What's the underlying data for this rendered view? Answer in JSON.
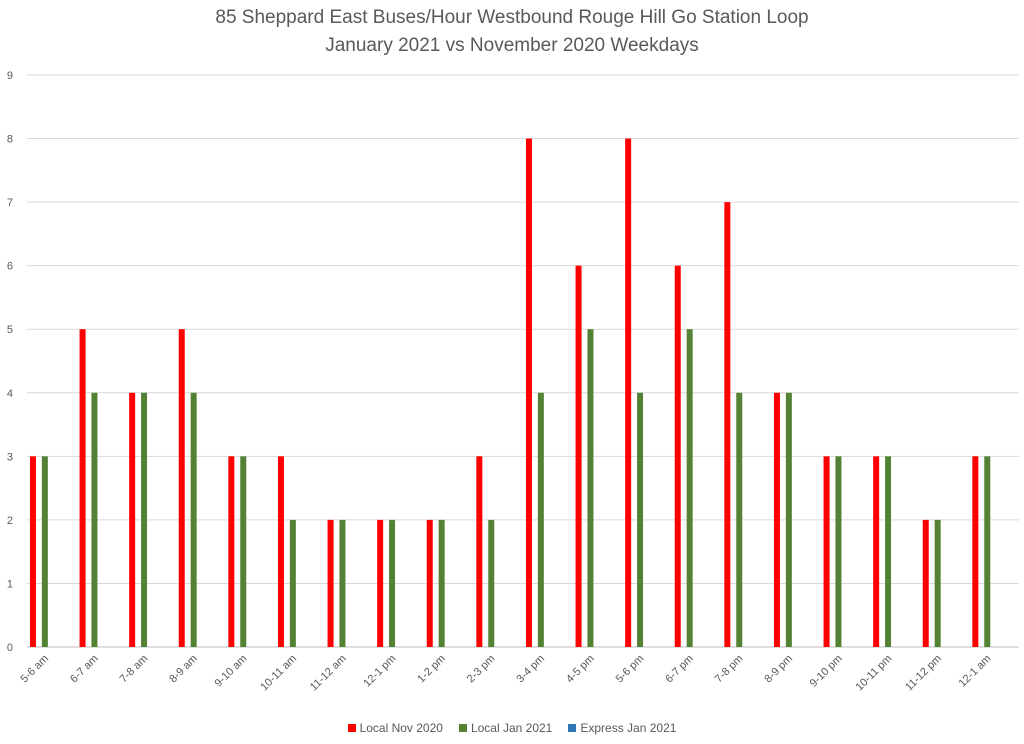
{
  "chart_data": {
    "type": "bar",
    "title": "85 Sheppard East Buses/Hour Westbound Rouge Hill Go Station Loop",
    "subtitle": "January 2021 vs November 2020 Weekdays",
    "xlabel": "",
    "ylabel": "",
    "ylim": [
      0,
      9
    ],
    "yticks": [
      0,
      1,
      2,
      3,
      4,
      5,
      6,
      7,
      8,
      9
    ],
    "grid": true,
    "legend_position": "bottom",
    "categories": [
      "5-6 am",
      "6-7 am",
      "7-8 am",
      "8-9 am",
      "9-10 am",
      "10-11 am",
      "11-12 am",
      "12-1 pm",
      "1-2 pm",
      "2-3 pm",
      "3-4 pm",
      "4-5 pm",
      "5-6 pm",
      "6-7 pm",
      "7-8 pm",
      "8-9 pm",
      "9-10 pm",
      "10-11 pm",
      "11-12 pm",
      "12-1 am"
    ],
    "series": [
      {
        "name": "Local Nov 2020",
        "color": "#ff0000",
        "values": [
          3,
          5,
          4,
          5,
          3,
          3,
          2,
          2,
          2,
          3,
          8,
          6,
          8,
          6,
          7,
          4,
          3,
          3,
          2,
          3
        ]
      },
      {
        "name": "Local Jan 2021",
        "color": "#548235",
        "values": [
          3,
          4,
          4,
          4,
          3,
          2,
          2,
          2,
          2,
          2,
          4,
          5,
          4,
          5,
          4,
          4,
          3,
          3,
          2,
          3
        ]
      },
      {
        "name": "Express Jan 2021",
        "color": "#2e75b6",
        "values": [
          0,
          0,
          0,
          0,
          0,
          0,
          0,
          0,
          0,
          0,
          0,
          0,
          0,
          0,
          0,
          0,
          0,
          0,
          0,
          0
        ]
      }
    ]
  }
}
